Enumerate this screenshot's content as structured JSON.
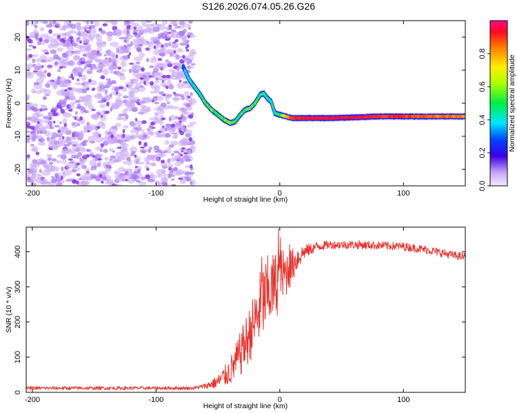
{
  "title": "S126.2026.074.05.26.G26",
  "colors": {
    "snr_line": "#e8332c",
    "noise_purple": "#8a3ff0",
    "noise_lilac": "#c8a6f5",
    "background": "#ffffff"
  },
  "chart_data": [
    {
      "type": "heatmap",
      "description_free": true,
      "xlabel": "Height of straight line (km)",
      "ylabel": "Frequency (Hz)",
      "xlim": [
        -205,
        150
      ],
      "ylim": [
        -25,
        25
      ],
      "xticks": [
        -200,
        -100,
        0,
        100
      ],
      "xtick_labels": [
        "-200",
        "-100",
        "0",
        "100"
      ],
      "yticks": [
        -20,
        -10,
        0,
        10,
        20
      ],
      "ytick_labels": [
        "-20",
        "-10",
        "0",
        "10",
        "20"
      ],
      "noise_region_x": [
        -205,
        -70
      ],
      "colorbar": {
        "label": "Normalized spectral amplitude",
        "range": [
          0.0,
          1.0
        ],
        "ticks": [
          0.0,
          0.2,
          0.4,
          0.6,
          0.8
        ],
        "tick_labels": [
          "0.0",
          "0.2",
          "0.4",
          "0.6",
          "0.8"
        ]
      },
      "ridge": {
        "x": [
          -78,
          -73,
          -65,
          -60,
          -55,
          -50,
          -45,
          -40,
          -36,
          -32,
          -28,
          -24,
          -20,
          -16,
          -13,
          -10,
          -7,
          -4,
          0,
          5,
          10,
          20,
          40,
          60,
          80,
          100,
          120,
          150
        ],
        "y": [
          11,
          7,
          3,
          0,
          -2,
          -3.5,
          -5,
          -6,
          -5.5,
          -3.5,
          -2,
          -1.5,
          0,
          2.5,
          3,
          1.5,
          0.5,
          -3,
          -3.5,
          -4,
          -4.5,
          -4.5,
          -4.5,
          -4.3,
          -4,
          -4,
          -4,
          -4
        ],
        "amplitude": [
          0.3,
          0.4,
          0.45,
          0.5,
          0.55,
          0.5,
          0.55,
          0.6,
          0.5,
          0.45,
          0.5,
          0.55,
          0.55,
          0.5,
          0.45,
          0.45,
          0.4,
          0.45,
          0.5,
          0.75,
          0.9,
          0.95,
          0.95,
          0.95,
          0.9,
          0.9,
          0.85,
          0.85
        ]
      }
    },
    {
      "type": "line",
      "xlabel": "Height of straight line (km)",
      "ylabel": "SNR (10 * v/v)",
      "xlim": [
        -205,
        150
      ],
      "ylim": [
        0,
        470
      ],
      "xticks": [
        -200,
        -100,
        0,
        100
      ],
      "xtick_labels": [
        "-200",
        "-100",
        "0",
        "100"
      ],
      "yticks": [
        0,
        100,
        200,
        300,
        400
      ],
      "ytick_labels": [
        "0",
        "100",
        "200",
        "300",
        "400"
      ],
      "series": [
        {
          "envelope_x": [
            -205,
            -70,
            -60,
            -50,
            -40,
            -30,
            -20,
            -15,
            -10,
            -5,
            0,
            5,
            10,
            15,
            20,
            30,
            40,
            60,
            80,
            100,
            120,
            140,
            150
          ],
          "envelope_y": [
            12,
            12,
            18,
            30,
            60,
            120,
            200,
            250,
            280,
            300,
            320,
            340,
            360,
            385,
            400,
            415,
            420,
            420,
            418,
            415,
            405,
            390,
            385
          ],
          "noise_amplitude": [
            5,
            5,
            8,
            20,
            40,
            70,
            90,
            110,
            110,
            100,
            90,
            70,
            50,
            35,
            20,
            14,
            12,
            12,
            12,
            12,
            12,
            12,
            12
          ],
          "spikes": [
            {
              "x": -14.5,
              "y": 385
            },
            {
              "x": -1,
              "y": 465
            },
            {
              "x": 0.5,
              "y": 440
            },
            {
              "x": -30,
              "y": 130
            },
            {
              "x": -23,
              "y": 200
            },
            {
              "x": 8,
              "y": 420
            }
          ]
        }
      ]
    }
  ]
}
